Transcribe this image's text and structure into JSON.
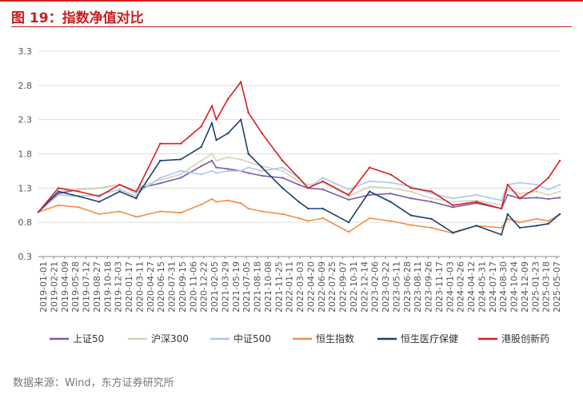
{
  "figure": {
    "title": "图 19：指数净值对比",
    "source": "数据来源：Wind，东方证券研究所"
  },
  "colors": {
    "accent": "#c81e1e",
    "grid": "#dddddd",
    "axis": "#888888"
  },
  "chart_data": {
    "type": "line",
    "title": "指数净值对比",
    "xlabel": "",
    "ylabel": "",
    "ylim": [
      0.3,
      3.3
    ],
    "yticks": [
      0.3,
      0.8,
      1.3,
      1.8,
      2.3,
      2.8,
      3.3
    ],
    "grid": true,
    "legend_position": "bottom",
    "x_tick_labels": [
      "2019-01-01",
      "2019-02-21",
      "2019-04-09",
      "2019-05-28",
      "2019-07-12",
      "2019-08-27",
      "2019-10-18",
      "2019-12-03",
      "2020-01-17",
      "2020-03-11",
      "2020-04-27",
      "2020-06-15",
      "2020-07-31",
      "2020-09-15",
      "2020-11-06",
      "2020-12-22",
      "2021-02-05",
      "2021-03-29",
      "2021-05-19",
      "2021-07-05",
      "2021-08-18",
      "2021-10-08",
      "2021-11-25",
      "2022-01-11",
      "2022-03-03",
      "2022-04-20",
      "2022-06-09",
      "2022-07-25",
      "2022-09-07",
      "2022-10-31",
      "2022-12-14",
      "2023-02-06",
      "2023-03-22",
      "2023-05-11",
      "2023-06-28",
      "2023-08-11",
      "2023-09-26",
      "2023-11-17",
      "2024-01-03",
      "2024-02-26",
      "2024-04-12",
      "2024-05-31",
      "2024-07-17",
      "2024-08-30",
      "2024-10-24",
      "2024-12-09",
      "2025-01-23",
      "2025-03-18",
      "2025-05-07"
    ],
    "x_dates": [
      "2019-01-01",
      "2019-04-01",
      "2019-07-01",
      "2019-10-01",
      "2020-01-01",
      "2020-03-15",
      "2020-04-01",
      "2020-07-01",
      "2020-10-01",
      "2021-01-01",
      "2021-02-18",
      "2021-03-10",
      "2021-05-01",
      "2021-06-28",
      "2021-08-01",
      "2021-10-01",
      "2022-01-01",
      "2022-03-15",
      "2022-04-26",
      "2022-07-01",
      "2022-10-25",
      "2023-01-27",
      "2023-05-01",
      "2023-08-01",
      "2023-11-01",
      "2024-02-05",
      "2024-05-20",
      "2024-09-10",
      "2024-10-08",
      "2024-12-01",
      "2025-02-15",
      "2025-04-09",
      "2025-05-30"
    ],
    "series": [
      {
        "name": "上证50",
        "color": "#7b5ba5",
        "values": [
          0.95,
          1.22,
          1.28,
          1.3,
          1.35,
          1.22,
          1.3,
          1.37,
          1.45,
          1.62,
          1.7,
          1.6,
          1.58,
          1.55,
          1.52,
          1.48,
          1.45,
          1.35,
          1.3,
          1.28,
          1.13,
          1.2,
          1.22,
          1.15,
          1.1,
          1.02,
          1.08,
          1.0,
          1.2,
          1.15,
          1.16,
          1.14,
          1.16
        ]
      },
      {
        "name": "沪深300",
        "color": "#d6d3b8",
        "values": [
          0.95,
          1.25,
          1.28,
          1.3,
          1.35,
          1.22,
          1.32,
          1.42,
          1.5,
          1.7,
          1.8,
          1.7,
          1.75,
          1.72,
          1.68,
          1.62,
          1.55,
          1.4,
          1.35,
          1.38,
          1.18,
          1.32,
          1.3,
          1.25,
          1.15,
          1.1,
          1.12,
          1.05,
          1.28,
          1.22,
          1.25,
          1.2,
          1.25
        ]
      },
      {
        "name": "中证500",
        "color": "#a9c8ef",
        "values": [
          0.95,
          1.2,
          1.18,
          1.2,
          1.28,
          1.18,
          1.25,
          1.45,
          1.55,
          1.5,
          1.55,
          1.52,
          1.55,
          1.55,
          1.6,
          1.55,
          1.6,
          1.45,
          1.3,
          1.45,
          1.28,
          1.4,
          1.38,
          1.32,
          1.22,
          1.15,
          1.2,
          1.12,
          1.35,
          1.38,
          1.35,
          1.28,
          1.35
        ]
      },
      {
        "name": "恒生指数",
        "color": "#f28e44",
        "values": [
          0.95,
          1.05,
          1.02,
          0.92,
          0.96,
          0.88,
          0.89,
          0.96,
          0.94,
          1.06,
          1.14,
          1.1,
          1.12,
          1.08,
          1.0,
          0.96,
          0.92,
          0.86,
          0.82,
          0.86,
          0.66,
          0.86,
          0.82,
          0.76,
          0.72,
          0.64,
          0.75,
          0.72,
          0.85,
          0.8,
          0.85,
          0.82,
          0.92
        ]
      },
      {
        "name": "恒生医疗保健",
        "color": "#1f3f6e",
        "values": [
          0.95,
          1.25,
          1.18,
          1.1,
          1.25,
          1.15,
          1.25,
          1.7,
          1.72,
          1.9,
          2.25,
          2.0,
          2.1,
          2.3,
          1.8,
          1.6,
          1.3,
          1.1,
          1.0,
          1.0,
          0.8,
          1.25,
          1.1,
          0.9,
          0.85,
          0.65,
          0.75,
          0.62,
          0.92,
          0.72,
          0.75,
          0.78,
          0.92
        ]
      },
      {
        "name": "港股创新药",
        "color": "#d81f1f",
        "values": [
          0.95,
          1.3,
          1.25,
          1.18,
          1.35,
          1.25,
          1.35,
          1.95,
          1.95,
          2.2,
          2.5,
          2.3,
          2.6,
          2.85,
          2.4,
          2.1,
          1.7,
          1.45,
          1.3,
          1.4,
          1.2,
          1.6,
          1.5,
          1.3,
          1.25,
          1.05,
          1.1,
          1.0,
          1.35,
          1.15,
          1.3,
          1.45,
          1.7
        ]
      }
    ]
  }
}
